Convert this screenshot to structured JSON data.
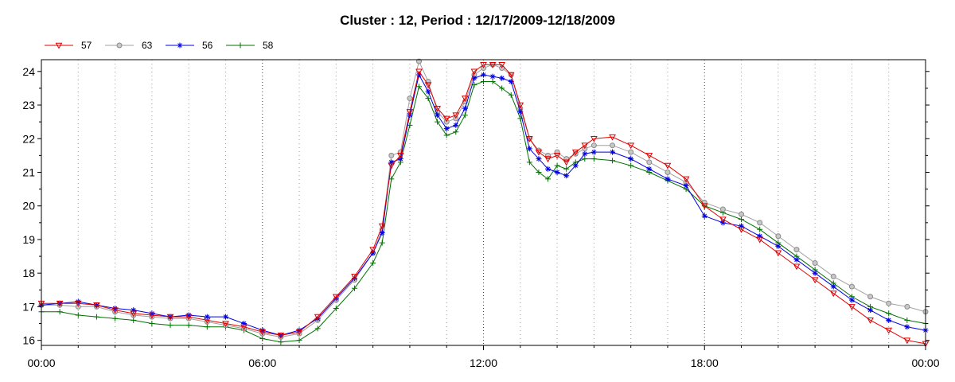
{
  "chart_data": {
    "type": "line",
    "title": "Cluster : 12, Period : 12/17/2009-12/18/2009",
    "xlabel": "",
    "ylabel": "",
    "x_ticks": [
      "00:00",
      "06:00",
      "12:00",
      "18:00",
      "00:00"
    ],
    "x_tick_hours": [
      0,
      6,
      12,
      18,
      24
    ],
    "y_ticks": [
      "16",
      "17",
      "18",
      "19",
      "20",
      "21",
      "22",
      "23",
      "24"
    ],
    "xlim": [
      0,
      24
    ],
    "ylim": [
      15.85,
      24.35
    ],
    "grid": "vertical dotted",
    "legend_position": "top-left",
    "x": [
      0,
      0.5,
      1,
      1.5,
      2,
      2.5,
      3,
      3.5,
      4,
      4.5,
      5,
      5.5,
      6,
      6.5,
      7,
      7.5,
      8,
      8.5,
      9,
      9.25,
      9.5,
      9.75,
      10,
      10.25,
      10.5,
      10.75,
      11,
      11.25,
      11.5,
      11.75,
      12,
      12.25,
      12.5,
      12.75,
      13,
      13.25,
      13.5,
      13.75,
      14,
      14.25,
      14.5,
      14.75,
      15,
      15.5,
      16,
      16.5,
      17,
      17.5,
      18,
      18.5,
      19,
      19.5,
      20,
      20.5,
      21,
      21.5,
      22,
      22.5,
      23,
      23.5,
      24
    ],
    "series": [
      {
        "name": "57",
        "color": "#e00000",
        "marker": "triangle-down",
        "values": [
          17.1,
          17.1,
          17.1,
          17.05,
          16.9,
          16.8,
          16.75,
          16.7,
          16.7,
          16.6,
          16.5,
          16.4,
          16.25,
          16.15,
          16.25,
          16.7,
          17.3,
          17.9,
          18.7,
          19.4,
          21.2,
          21.5,
          22.8,
          24.0,
          23.6,
          22.9,
          22.6,
          22.7,
          23.2,
          24.0,
          24.2,
          24.2,
          24.2,
          23.9,
          23.0,
          22.0,
          21.6,
          21.4,
          21.5,
          21.3,
          21.6,
          21.8,
          22.0,
          22.05,
          21.8,
          21.5,
          21.2,
          20.8,
          20.0,
          19.6,
          19.3,
          19.0,
          18.6,
          18.2,
          17.8,
          17.4,
          17.0,
          16.6,
          16.3,
          16.0,
          15.9
        ]
      },
      {
        "name": "63",
        "color": "#a0a0a0",
        "marker": "circle",
        "values": [
          17.05,
          17.05,
          17.0,
          17.0,
          16.85,
          16.75,
          16.7,
          16.65,
          16.65,
          16.55,
          16.45,
          16.35,
          16.2,
          16.1,
          16.2,
          16.6,
          17.2,
          17.8,
          18.6,
          19.3,
          21.5,
          21.6,
          23.2,
          24.3,
          23.7,
          22.8,
          22.5,
          22.6,
          23.1,
          23.9,
          24.1,
          24.2,
          24.1,
          23.9,
          22.9,
          22.0,
          21.65,
          21.5,
          21.6,
          21.4,
          21.55,
          21.7,
          21.8,
          21.8,
          21.6,
          21.3,
          21.0,
          20.7,
          20.1,
          19.9,
          19.75,
          19.5,
          19.1,
          18.7,
          18.3,
          17.9,
          17.6,
          17.3,
          17.1,
          17.0,
          16.85
        ]
      },
      {
        "name": "56",
        "color": "#0000e0",
        "marker": "star",
        "values": [
          17.05,
          17.1,
          17.15,
          17.05,
          16.95,
          16.9,
          16.8,
          16.7,
          16.75,
          16.7,
          16.7,
          16.5,
          16.3,
          16.15,
          16.3,
          16.65,
          17.25,
          17.85,
          18.6,
          19.2,
          21.3,
          21.4,
          22.7,
          23.9,
          23.4,
          22.7,
          22.3,
          22.4,
          22.9,
          23.8,
          23.9,
          23.85,
          23.8,
          23.7,
          22.8,
          21.7,
          21.4,
          21.1,
          21.0,
          20.9,
          21.2,
          21.55,
          21.6,
          21.6,
          21.4,
          21.1,
          20.8,
          20.6,
          19.7,
          19.5,
          19.4,
          19.1,
          18.8,
          18.4,
          18.0,
          17.6,
          17.2,
          16.9,
          16.6,
          16.4,
          16.3
        ]
      },
      {
        "name": "58",
        "color": "#007000",
        "marker": "plus",
        "values": [
          16.85,
          16.85,
          16.75,
          16.7,
          16.65,
          16.6,
          16.5,
          16.45,
          16.45,
          16.4,
          16.4,
          16.3,
          16.05,
          15.95,
          16.0,
          16.35,
          16.95,
          17.55,
          18.3,
          18.9,
          20.8,
          21.3,
          22.4,
          23.55,
          23.2,
          22.5,
          22.1,
          22.2,
          22.7,
          23.6,
          23.7,
          23.7,
          23.5,
          23.3,
          22.6,
          21.3,
          21.0,
          20.8,
          21.2,
          21.1,
          21.3,
          21.4,
          21.4,
          21.35,
          21.2,
          21.0,
          20.75,
          20.5,
          20.0,
          19.8,
          19.6,
          19.3,
          18.9,
          18.5,
          18.1,
          17.7,
          17.3,
          17.0,
          16.8,
          16.6,
          16.5
        ]
      }
    ]
  }
}
